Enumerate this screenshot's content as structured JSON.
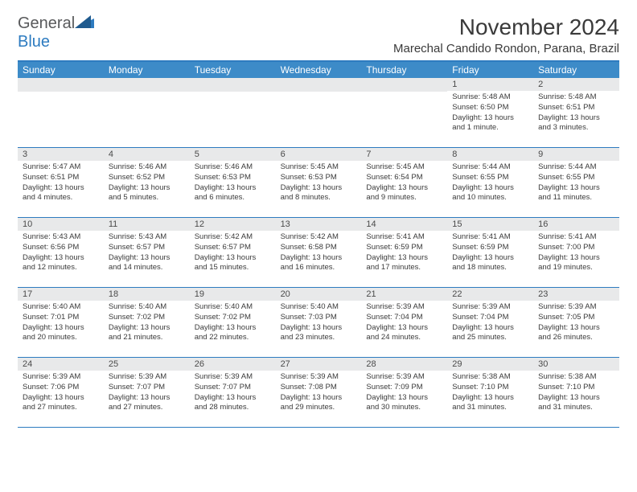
{
  "logo": {
    "text1": "General",
    "text2": "Blue"
  },
  "title": "November 2024",
  "location": "Marechal Candido Rondon, Parana, Brazil",
  "dayNames": [
    "Sunday",
    "Monday",
    "Tuesday",
    "Wednesday",
    "Thursday",
    "Friday",
    "Saturday"
  ],
  "colors": {
    "headerBar": "#3d8bc8",
    "borderBlue": "#2d7bc0",
    "dayNumBg": "#e8e9ea",
    "text": "#3a3a3a",
    "logoGray": "#58595b"
  },
  "weeks": [
    [
      {
        "num": "",
        "sunrise": "",
        "sunset": "",
        "daylight": ""
      },
      {
        "num": "",
        "sunrise": "",
        "sunset": "",
        "daylight": ""
      },
      {
        "num": "",
        "sunrise": "",
        "sunset": "",
        "daylight": ""
      },
      {
        "num": "",
        "sunrise": "",
        "sunset": "",
        "daylight": ""
      },
      {
        "num": "",
        "sunrise": "",
        "sunset": "",
        "daylight": ""
      },
      {
        "num": "1",
        "sunrise": "Sunrise: 5:48 AM",
        "sunset": "Sunset: 6:50 PM",
        "daylight": "Daylight: 13 hours and 1 minute."
      },
      {
        "num": "2",
        "sunrise": "Sunrise: 5:48 AM",
        "sunset": "Sunset: 6:51 PM",
        "daylight": "Daylight: 13 hours and 3 minutes."
      }
    ],
    [
      {
        "num": "3",
        "sunrise": "Sunrise: 5:47 AM",
        "sunset": "Sunset: 6:51 PM",
        "daylight": "Daylight: 13 hours and 4 minutes."
      },
      {
        "num": "4",
        "sunrise": "Sunrise: 5:46 AM",
        "sunset": "Sunset: 6:52 PM",
        "daylight": "Daylight: 13 hours and 5 minutes."
      },
      {
        "num": "5",
        "sunrise": "Sunrise: 5:46 AM",
        "sunset": "Sunset: 6:53 PM",
        "daylight": "Daylight: 13 hours and 6 minutes."
      },
      {
        "num": "6",
        "sunrise": "Sunrise: 5:45 AM",
        "sunset": "Sunset: 6:53 PM",
        "daylight": "Daylight: 13 hours and 8 minutes."
      },
      {
        "num": "7",
        "sunrise": "Sunrise: 5:45 AM",
        "sunset": "Sunset: 6:54 PM",
        "daylight": "Daylight: 13 hours and 9 minutes."
      },
      {
        "num": "8",
        "sunrise": "Sunrise: 5:44 AM",
        "sunset": "Sunset: 6:55 PM",
        "daylight": "Daylight: 13 hours and 10 minutes."
      },
      {
        "num": "9",
        "sunrise": "Sunrise: 5:44 AM",
        "sunset": "Sunset: 6:55 PM",
        "daylight": "Daylight: 13 hours and 11 minutes."
      }
    ],
    [
      {
        "num": "10",
        "sunrise": "Sunrise: 5:43 AM",
        "sunset": "Sunset: 6:56 PM",
        "daylight": "Daylight: 13 hours and 12 minutes."
      },
      {
        "num": "11",
        "sunrise": "Sunrise: 5:43 AM",
        "sunset": "Sunset: 6:57 PM",
        "daylight": "Daylight: 13 hours and 14 minutes."
      },
      {
        "num": "12",
        "sunrise": "Sunrise: 5:42 AM",
        "sunset": "Sunset: 6:57 PM",
        "daylight": "Daylight: 13 hours and 15 minutes."
      },
      {
        "num": "13",
        "sunrise": "Sunrise: 5:42 AM",
        "sunset": "Sunset: 6:58 PM",
        "daylight": "Daylight: 13 hours and 16 minutes."
      },
      {
        "num": "14",
        "sunrise": "Sunrise: 5:41 AM",
        "sunset": "Sunset: 6:59 PM",
        "daylight": "Daylight: 13 hours and 17 minutes."
      },
      {
        "num": "15",
        "sunrise": "Sunrise: 5:41 AM",
        "sunset": "Sunset: 6:59 PM",
        "daylight": "Daylight: 13 hours and 18 minutes."
      },
      {
        "num": "16",
        "sunrise": "Sunrise: 5:41 AM",
        "sunset": "Sunset: 7:00 PM",
        "daylight": "Daylight: 13 hours and 19 minutes."
      }
    ],
    [
      {
        "num": "17",
        "sunrise": "Sunrise: 5:40 AM",
        "sunset": "Sunset: 7:01 PM",
        "daylight": "Daylight: 13 hours and 20 minutes."
      },
      {
        "num": "18",
        "sunrise": "Sunrise: 5:40 AM",
        "sunset": "Sunset: 7:02 PM",
        "daylight": "Daylight: 13 hours and 21 minutes."
      },
      {
        "num": "19",
        "sunrise": "Sunrise: 5:40 AM",
        "sunset": "Sunset: 7:02 PM",
        "daylight": "Daylight: 13 hours and 22 minutes."
      },
      {
        "num": "20",
        "sunrise": "Sunrise: 5:40 AM",
        "sunset": "Sunset: 7:03 PM",
        "daylight": "Daylight: 13 hours and 23 minutes."
      },
      {
        "num": "21",
        "sunrise": "Sunrise: 5:39 AM",
        "sunset": "Sunset: 7:04 PM",
        "daylight": "Daylight: 13 hours and 24 minutes."
      },
      {
        "num": "22",
        "sunrise": "Sunrise: 5:39 AM",
        "sunset": "Sunset: 7:04 PM",
        "daylight": "Daylight: 13 hours and 25 minutes."
      },
      {
        "num": "23",
        "sunrise": "Sunrise: 5:39 AM",
        "sunset": "Sunset: 7:05 PM",
        "daylight": "Daylight: 13 hours and 26 minutes."
      }
    ],
    [
      {
        "num": "24",
        "sunrise": "Sunrise: 5:39 AM",
        "sunset": "Sunset: 7:06 PM",
        "daylight": "Daylight: 13 hours and 27 minutes."
      },
      {
        "num": "25",
        "sunrise": "Sunrise: 5:39 AM",
        "sunset": "Sunset: 7:07 PM",
        "daylight": "Daylight: 13 hours and 27 minutes."
      },
      {
        "num": "26",
        "sunrise": "Sunrise: 5:39 AM",
        "sunset": "Sunset: 7:07 PM",
        "daylight": "Daylight: 13 hours and 28 minutes."
      },
      {
        "num": "27",
        "sunrise": "Sunrise: 5:39 AM",
        "sunset": "Sunset: 7:08 PM",
        "daylight": "Daylight: 13 hours and 29 minutes."
      },
      {
        "num": "28",
        "sunrise": "Sunrise: 5:39 AM",
        "sunset": "Sunset: 7:09 PM",
        "daylight": "Daylight: 13 hours and 30 minutes."
      },
      {
        "num": "29",
        "sunrise": "Sunrise: 5:38 AM",
        "sunset": "Sunset: 7:10 PM",
        "daylight": "Daylight: 13 hours and 31 minutes."
      },
      {
        "num": "30",
        "sunrise": "Sunrise: 5:38 AM",
        "sunset": "Sunset: 7:10 PM",
        "daylight": "Daylight: 13 hours and 31 minutes."
      }
    ]
  ]
}
